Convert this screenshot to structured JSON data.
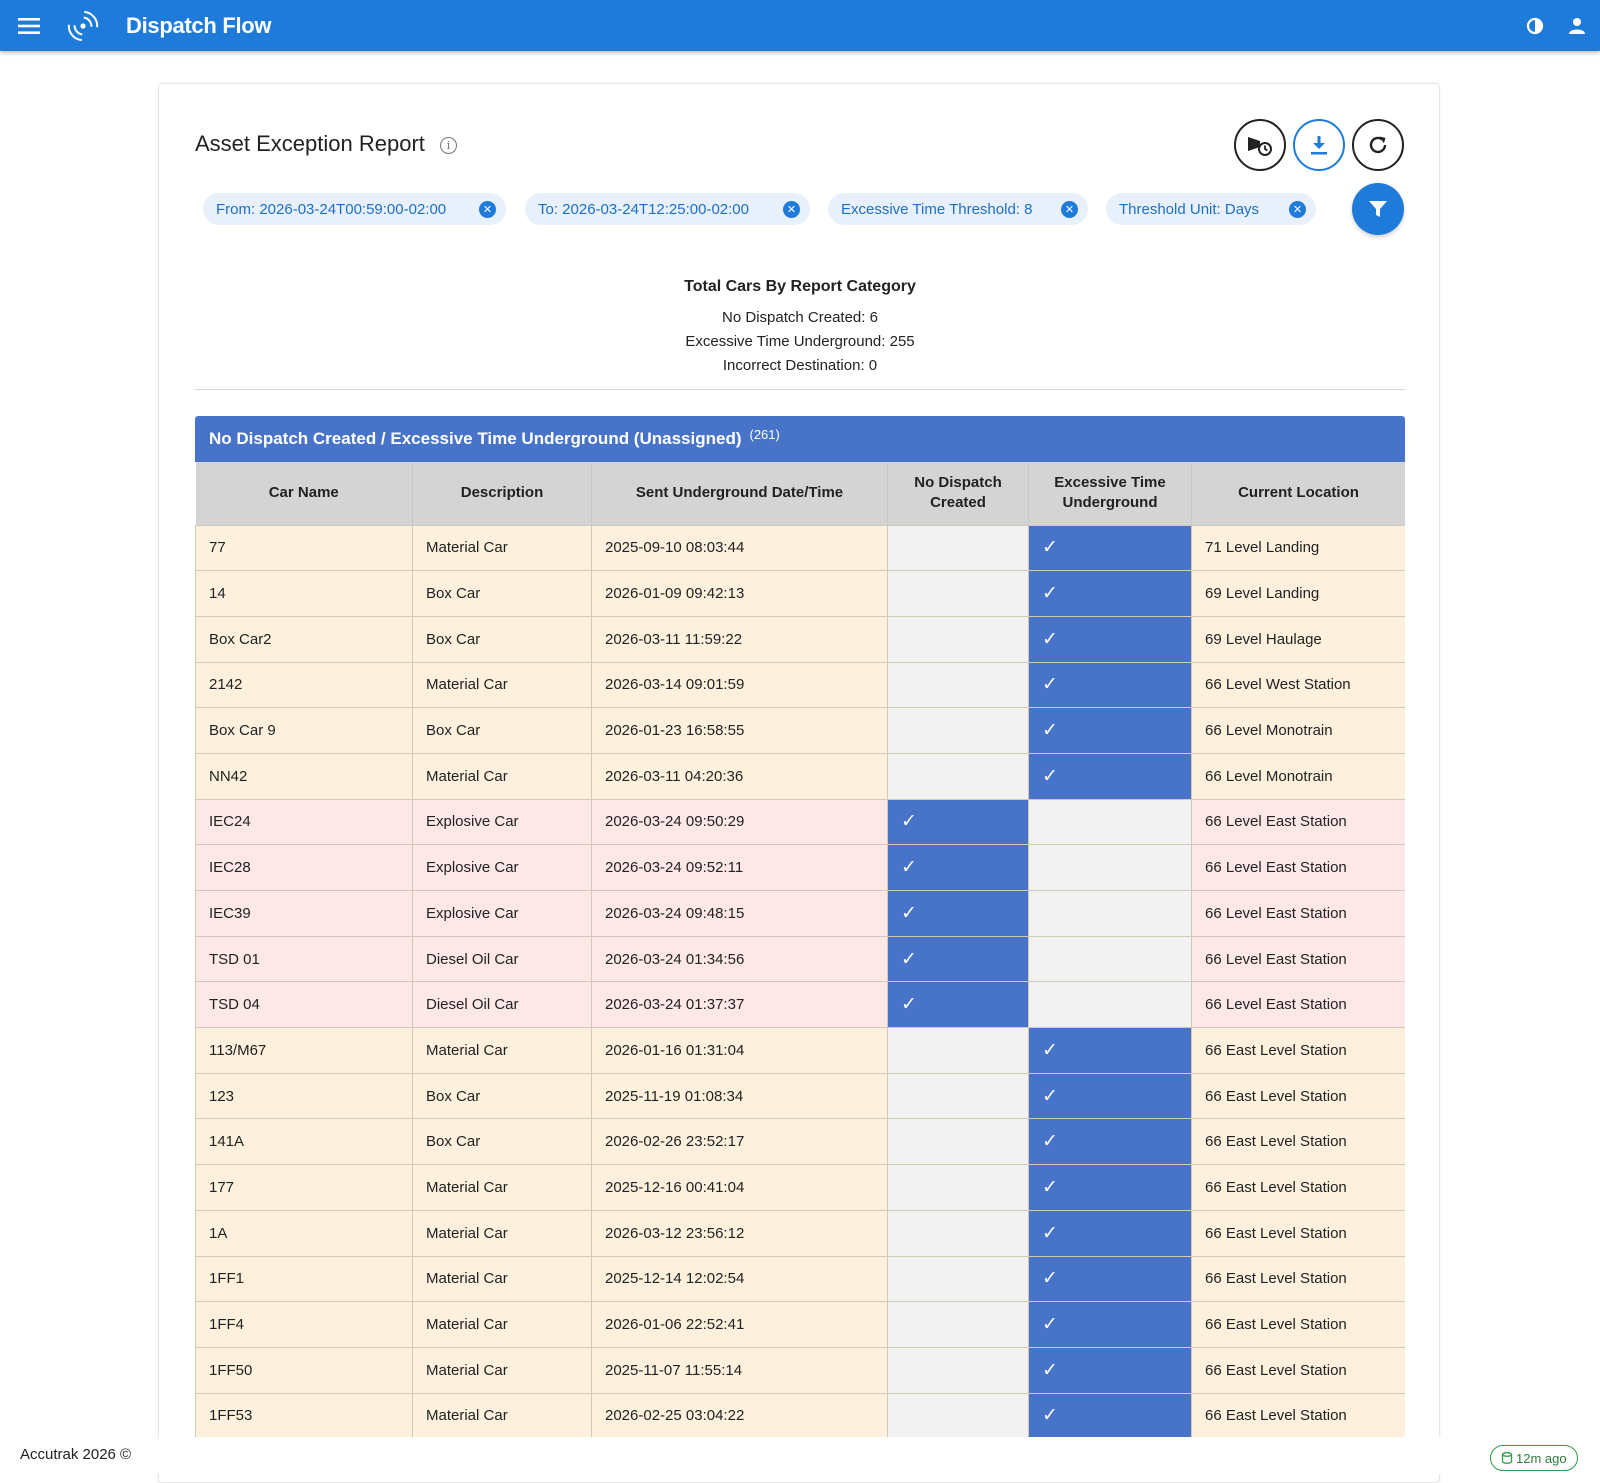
{
  "app": {
    "title": "Dispatch Flow"
  },
  "report": {
    "title": "Asset Exception Report"
  },
  "filters": [
    {
      "label": "From: 2026-03-24T00:59:00-02:00"
    },
    {
      "label": "To: 2026-03-24T12:25:00-02:00"
    },
    {
      "label": "Excessive Time Threshold: 8"
    },
    {
      "label": "Threshold Unit: Days"
    }
  ],
  "summary": {
    "title": "Total Cars By Report Category",
    "lines": [
      "No Dispatch Created: 6",
      "Excessive Time Underground: 255",
      "Incorrect Destination: 0"
    ]
  },
  "table": {
    "title": "No Dispatch Created / Excessive Time Underground (Unassigned)",
    "count": "(261)",
    "check_glyph": "✓",
    "columns": [
      "Car Name",
      "Description",
      "Sent Underground Date/Time",
      "No Dispatch Created",
      "Excessive Time Underground",
      "Current Location"
    ],
    "rows": [
      {
        "name": "77",
        "desc": "Material Car",
        "sent": "2025-09-10 08:03:44",
        "ndc": false,
        "etu": true,
        "loc": "71 Level Landing"
      },
      {
        "name": "14",
        "desc": "Box Car",
        "sent": "2026-01-09 09:42:13",
        "ndc": false,
        "etu": true,
        "loc": "69 Level Landing"
      },
      {
        "name": "Box Car2",
        "desc": "Box Car",
        "sent": "2026-03-11 11:59:22",
        "ndc": false,
        "etu": true,
        "loc": "69 Level Haulage"
      },
      {
        "name": "2142",
        "desc": "Material Car",
        "sent": "2026-03-14 09:01:59",
        "ndc": false,
        "etu": true,
        "loc": "66 Level West Station"
      },
      {
        "name": "Box Car 9",
        "desc": "Box Car",
        "sent": "2026-01-23 16:58:55",
        "ndc": false,
        "etu": true,
        "loc": "66 Level Monotrain"
      },
      {
        "name": "NN42",
        "desc": "Material Car",
        "sent": "2026-03-11 04:20:36",
        "ndc": false,
        "etu": true,
        "loc": "66 Level Monotrain"
      },
      {
        "name": "IEC24",
        "desc": "Explosive Car",
        "sent": "2026-03-24 09:50:29",
        "ndc": true,
        "etu": false,
        "loc": "66 Level East Station"
      },
      {
        "name": "IEC28",
        "desc": "Explosive Car",
        "sent": "2026-03-24 09:52:11",
        "ndc": true,
        "etu": false,
        "loc": "66 Level East Station"
      },
      {
        "name": "IEC39",
        "desc": "Explosive Car",
        "sent": "2026-03-24 09:48:15",
        "ndc": true,
        "etu": false,
        "loc": "66 Level East Station"
      },
      {
        "name": "TSD 01",
        "desc": "Diesel Oil Car",
        "sent": "2026-03-24 01:34:56",
        "ndc": true,
        "etu": false,
        "loc": "66 Level East Station"
      },
      {
        "name": "TSD 04",
        "desc": "Diesel Oil Car",
        "sent": "2026-03-24 01:37:37",
        "ndc": true,
        "etu": false,
        "loc": "66 Level East Station"
      },
      {
        "name": "113/M67",
        "desc": "Material Car",
        "sent": "2026-01-16 01:31:04",
        "ndc": false,
        "etu": true,
        "loc": "66 East Level Station"
      },
      {
        "name": "123",
        "desc": "Box Car",
        "sent": "2025-11-19 01:08:34",
        "ndc": false,
        "etu": true,
        "loc": "66 East Level Station"
      },
      {
        "name": "141A",
        "desc": "Box Car",
        "sent": "2026-02-26 23:52:17",
        "ndc": false,
        "etu": true,
        "loc": "66 East Level Station"
      },
      {
        "name": "177",
        "desc": "Material Car",
        "sent": "2025-12-16 00:41:04",
        "ndc": false,
        "etu": true,
        "loc": "66 East Level Station"
      },
      {
        "name": "1A",
        "desc": "Material Car",
        "sent": "2026-03-12 23:56:12",
        "ndc": false,
        "etu": true,
        "loc": "66 East Level Station"
      },
      {
        "name": "1FF1",
        "desc": "Material Car",
        "sent": "2025-12-14 12:02:54",
        "ndc": false,
        "etu": true,
        "loc": "66 East Level Station"
      },
      {
        "name": "1FF4",
        "desc": "Material Car",
        "sent": "2026-01-06 22:52:41",
        "ndc": false,
        "etu": true,
        "loc": "66 East Level Station"
      },
      {
        "name": "1FF50",
        "desc": "Material Car",
        "sent": "2025-11-07 11:55:14",
        "ndc": false,
        "etu": true,
        "loc": "66 East Level Station"
      },
      {
        "name": "1FF53",
        "desc": "Material Car",
        "sent": "2026-02-25 03:04:22",
        "ndc": false,
        "etu": true,
        "loc": "66 East Level Station"
      }
    ]
  },
  "footer": {
    "copyright": "Accutrak 2026 ©",
    "sync": "12m ago"
  }
}
